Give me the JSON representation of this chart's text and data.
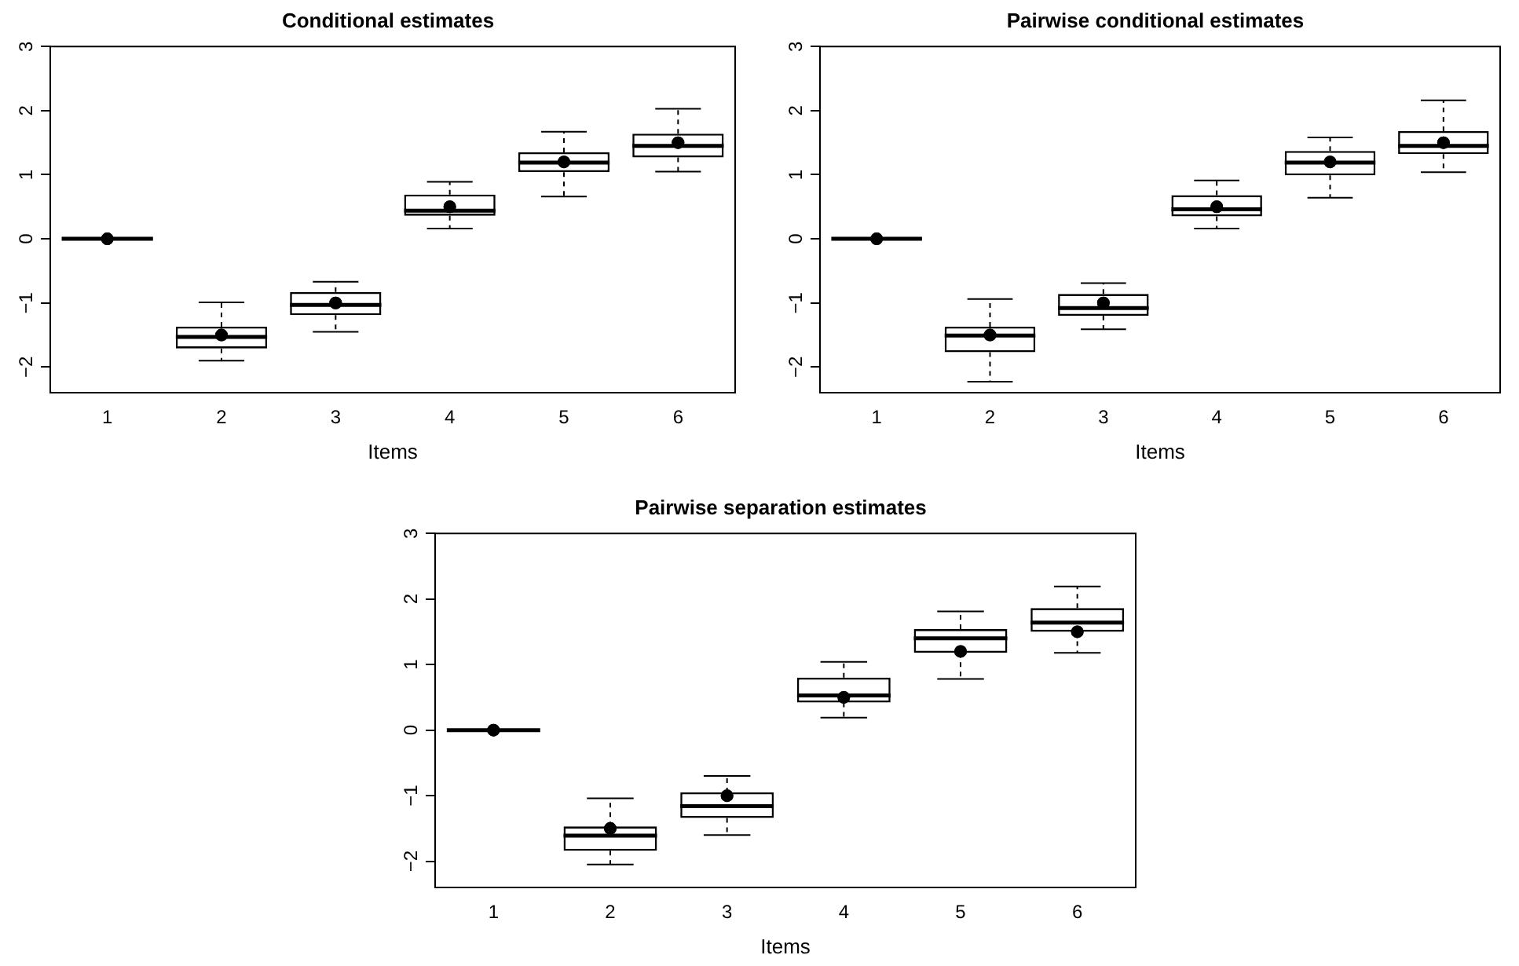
{
  "chart_data": [
    {
      "type": "box",
      "title": "Conditional estimates",
      "xlabel": "Items",
      "categories": [
        "1",
        "2",
        "3",
        "4",
        "5",
        "6"
      ],
      "color": "#000000",
      "ylim": [
        -2.4,
        3
      ],
      "yticks": [
        -2,
        -1,
        0,
        1,
        2,
        3
      ],
      "grid": false,
      "boxes": [
        {
          "low": 0,
          "q1": 0,
          "median": 0,
          "q3": 0,
          "high": 0
        },
        {
          "low": -1.9,
          "q1": -1.71,
          "median": -1.53,
          "q3": -1.37,
          "high": -0.99
        },
        {
          "low": -1.45,
          "q1": -1.19,
          "median": -1.03,
          "q3": -0.83,
          "high": -0.67
        },
        {
          "low": 0.16,
          "q1": 0.36,
          "median": 0.44,
          "q3": 0.69,
          "high": 0.89
        },
        {
          "low": 0.66,
          "q1": 1.04,
          "median": 1.19,
          "q3": 1.35,
          "high": 1.67
        },
        {
          "low": 1.05,
          "q1": 1.27,
          "median": 1.45,
          "q3": 1.64,
          "high": 2.03
        }
      ],
      "series": [
        {
          "type": "scatter",
          "x": [
            "1",
            "2",
            "3",
            "4",
            "5",
            "6"
          ],
          "values": [
            0,
            -1.5,
            -1,
            0.5,
            1.2,
            1.5
          ],
          "color": "#000000",
          "marker": "circle"
        }
      ]
    },
    {
      "type": "box",
      "title": "Pairwise conditional estimates",
      "xlabel": "Items",
      "categories": [
        "1",
        "2",
        "3",
        "4",
        "5",
        "6"
      ],
      "color": "#000000",
      "ylim": [
        -2.4,
        3
      ],
      "yticks": [
        -2,
        -1,
        0,
        1,
        2,
        3
      ],
      "grid": false,
      "boxes": [
        {
          "low": 0,
          "q1": 0,
          "median": 0,
          "q3": 0,
          "high": 0
        },
        {
          "low": -2.23,
          "q1": -1.77,
          "median": -1.51,
          "q3": -1.37,
          "high": -0.94
        },
        {
          "low": -1.41,
          "q1": -1.2,
          "median": -1.08,
          "q3": -0.86,
          "high": -0.69
        },
        {
          "low": 0.16,
          "q1": 0.35,
          "median": 0.46,
          "q3": 0.68,
          "high": 0.91
        },
        {
          "low": 0.64,
          "q1": 0.99,
          "median": 1.19,
          "q3": 1.37,
          "high": 1.58
        },
        {
          "low": 1.04,
          "q1": 1.32,
          "median": 1.45,
          "q3": 1.68,
          "high": 2.16
        }
      ],
      "series": [
        {
          "type": "scatter",
          "x": [
            "1",
            "2",
            "3",
            "4",
            "5",
            "6"
          ],
          "values": [
            0,
            -1.5,
            -1,
            0.5,
            1.2,
            1.5
          ],
          "color": "#000000",
          "marker": "circle"
        }
      ]
    },
    {
      "type": "box",
      "title": "Pairwise separation estimates",
      "xlabel": "Items",
      "categories": [
        "1",
        "2",
        "3",
        "4",
        "5",
        "6"
      ],
      "color": "#000000",
      "ylim": [
        -2.4,
        3
      ],
      "yticks": [
        -2,
        -1,
        0,
        1,
        2,
        3
      ],
      "grid": false,
      "boxes": [
        {
          "low": 0,
          "q1": 0,
          "median": 0,
          "q3": 0,
          "high": 0
        },
        {
          "low": -2.05,
          "q1": -1.84,
          "median": -1.61,
          "q3": -1.47,
          "high": -1.04
        },
        {
          "low": -1.6,
          "q1": -1.34,
          "median": -1.16,
          "q3": -0.95,
          "high": -0.7
        },
        {
          "low": 0.19,
          "q1": 0.42,
          "median": 0.53,
          "q3": 0.8,
          "high": 1.04
        },
        {
          "low": 0.78,
          "q1": 1.18,
          "median": 1.4,
          "q3": 1.54,
          "high": 1.81
        },
        {
          "low": 1.18,
          "q1": 1.5,
          "median": 1.64,
          "q3": 1.86,
          "high": 2.19
        }
      ],
      "series": [
        {
          "type": "scatter",
          "x": [
            "1",
            "2",
            "3",
            "4",
            "5",
            "6"
          ],
          "values": [
            0,
            -1.5,
            -1,
            0.5,
            1.2,
            1.5
          ],
          "color": "#000000",
          "marker": "circle"
        }
      ]
    }
  ]
}
